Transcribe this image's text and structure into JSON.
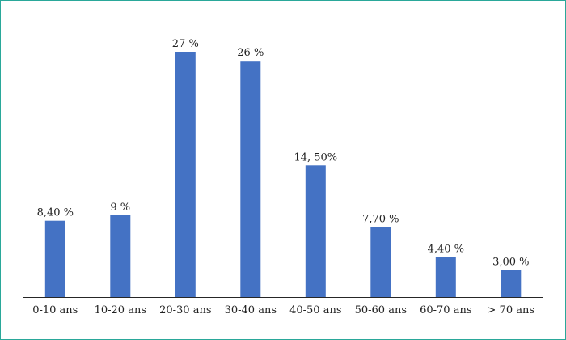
{
  "chart_data": {
    "type": "bar",
    "categories": [
      "0-10 ans",
      "10-20 ans",
      "20-30 ans",
      "30-40 ans",
      "40-50 ans",
      "50-60 ans",
      "60-70 ans",
      "> 70 ans"
    ],
    "values": [
      8.4,
      9,
      27,
      26,
      14.5,
      7.7,
      4.4,
      3.0
    ],
    "data_labels": [
      "8,40 %",
      "9 %",
      "27 %",
      "26 %",
      "14, 50%",
      "7,70 %",
      "4,40 %",
      "3,00 %"
    ],
    "title": "",
    "xlabel": "",
    "ylabel": "",
    "ylim": [
      0,
      27
    ],
    "grid": false,
    "legend": "none",
    "colors": {
      "bar": "#4472c4",
      "axis": "#262626",
      "frame": "#2aa89a"
    }
  }
}
